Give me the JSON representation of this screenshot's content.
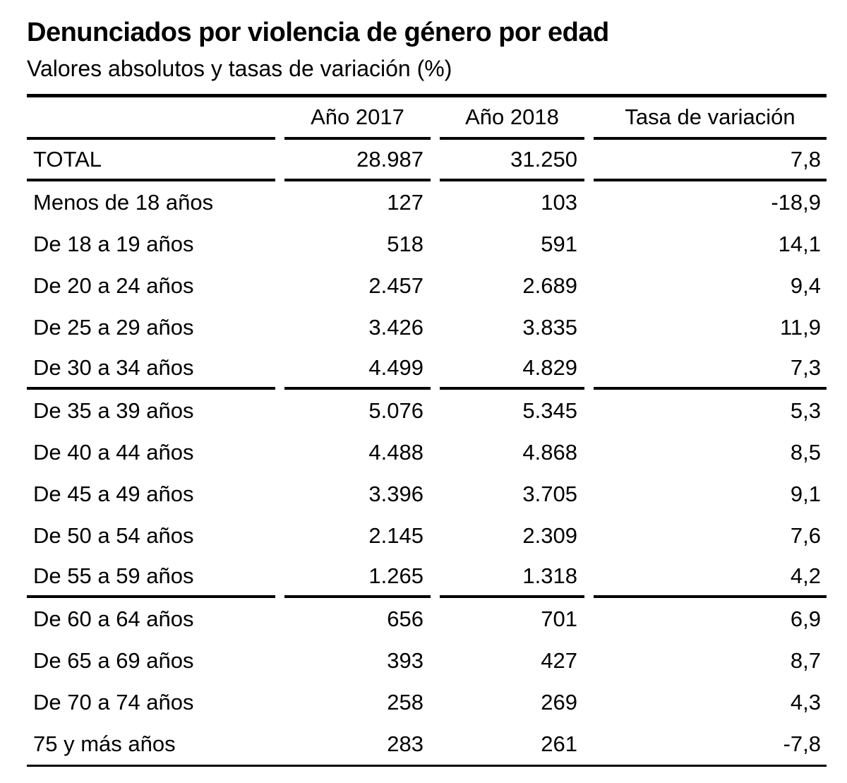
{
  "title": "Denunciados por violencia de género por edad",
  "subtitle": "Valores absolutos y tasas de variación (%)",
  "table": {
    "headers": {
      "label": "",
      "y2017": "Año 2017",
      "y2018": "Año 2018",
      "tasa": "Tasa de variación"
    },
    "rows": [
      {
        "label": "TOTAL",
        "y2017": "28.987",
        "y2018": "31.250",
        "tasa": "7,8"
      },
      {
        "label": "Menos de 18 años",
        "y2017": "127",
        "y2018": "103",
        "tasa": "-18,9"
      },
      {
        "label": "De 18 a 19 años",
        "y2017": "518",
        "y2018": "591",
        "tasa": "14,1"
      },
      {
        "label": "De 20 a 24 años",
        "y2017": "2.457",
        "y2018": "2.689",
        "tasa": "9,4"
      },
      {
        "label": "De 25 a 29 años",
        "y2017": "3.426",
        "y2018": "3.835",
        "tasa": "11,9"
      },
      {
        "label": "De 30 a 34 años",
        "y2017": "4.499",
        "y2018": "4.829",
        "tasa": "7,3"
      },
      {
        "label": "De 35 a 39 años",
        "y2017": "5.076",
        "y2018": "5.345",
        "tasa": "5,3"
      },
      {
        "label": "De 40 a 44 años",
        "y2017": "4.488",
        "y2018": "4.868",
        "tasa": "8,5"
      },
      {
        "label": "De 45 a 49 años",
        "y2017": "3.396",
        "y2018": "3.705",
        "tasa": "9,1"
      },
      {
        "label": "De 50 a 54 años",
        "y2017": "2.145",
        "y2018": "2.309",
        "tasa": "7,6"
      },
      {
        "label": "De 55 a 59 años",
        "y2017": "1.265",
        "y2018": "1.318",
        "tasa": "4,2"
      },
      {
        "label": "De 60 a 64 años",
        "y2017": "656",
        "y2018": "701",
        "tasa": "6,9"
      },
      {
        "label": "De 65 a 69 años",
        "y2017": "393",
        "y2018": "427",
        "tasa": "8,7"
      },
      {
        "label": "De 70 a 74 años",
        "y2017": "258",
        "y2018": "269",
        "tasa": "4,3"
      },
      {
        "label": "75 y más años",
        "y2017": "283",
        "y2018": "261",
        "tasa": "-7,8"
      }
    ]
  },
  "chart_data": {
    "type": "table",
    "title": "Denunciados por violencia de género por edad",
    "subtitle": "Valores absolutos y tasas de variación (%)",
    "columns": [
      "",
      "Año 2017",
      "Año 2018",
      "Tasa de variación"
    ],
    "rows": [
      [
        "TOTAL",
        28987,
        31250,
        7.8
      ],
      [
        "Menos de 18 años",
        127,
        103,
        -18.9
      ],
      [
        "De 18 a 19 años",
        518,
        591,
        14.1
      ],
      [
        "De 20 a 24 años",
        2457,
        2689,
        9.4
      ],
      [
        "De 25 a 29 años",
        3426,
        3835,
        11.9
      ],
      [
        "De 30 a 34 años",
        4499,
        4829,
        7.3
      ],
      [
        "De 35 a 39 años",
        5076,
        5345,
        5.3
      ],
      [
        "De 40 a 44 años",
        4488,
        4868,
        8.5
      ],
      [
        "De 45 a 49 años",
        3396,
        3705,
        9.1
      ],
      [
        "De 50 a 54 años",
        2145,
        2309,
        7.6
      ],
      [
        "De 55 a 59 años",
        1265,
        1318,
        4.2
      ],
      [
        "De 60 a 64 años",
        656,
        701,
        6.9
      ],
      [
        "De 65 a 69 años",
        393,
        427,
        8.7
      ],
      [
        "De 70 a 74 años",
        258,
        269,
        4.3
      ],
      [
        "75 y más años",
        283,
        261,
        -7.8
      ]
    ]
  }
}
